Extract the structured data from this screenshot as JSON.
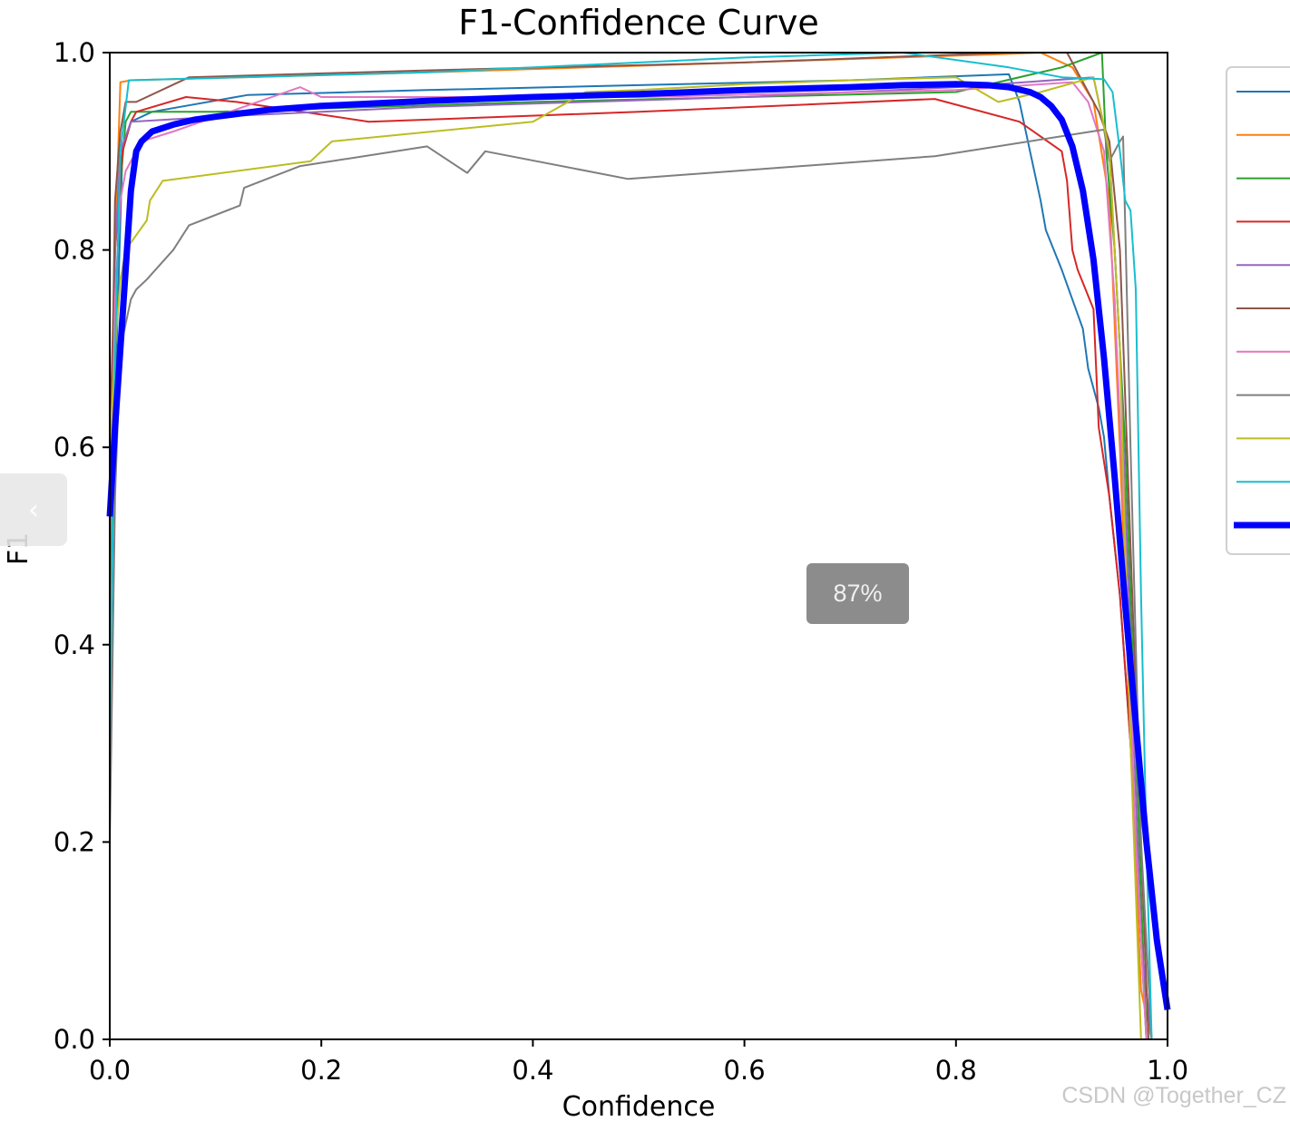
{
  "chart_data": {
    "type": "line",
    "title": "F1-Confidence Curve",
    "xlabel": "Confidence",
    "ylabel": "F1",
    "xlim": [
      0,
      1
    ],
    "ylim": [
      0,
      1
    ],
    "xticks": [
      "0.0",
      "0.2",
      "0.4",
      "0.6",
      "0.8",
      "1.0"
    ],
    "yticks": [
      "0.0",
      "0.2",
      "0.4",
      "0.6",
      "0.8",
      "1.0"
    ],
    "grid": false,
    "legend_position": "upper right (outside, cropped)",
    "series": [
      {
        "color": "#1f77b4",
        "width": 2,
        "x": [
          0.0,
          0.005,
          0.012,
          0.02,
          0.04,
          0.13,
          0.3,
          0.5,
          0.7,
          0.85,
          0.86,
          0.87,
          0.88,
          0.885,
          0.9,
          0.92,
          0.925,
          0.935,
          0.94,
          0.945,
          0.955,
          0.965,
          0.975,
          0.98
        ],
        "y": [
          0.35,
          0.65,
          0.9,
          0.93,
          0.94,
          0.957,
          0.962,
          0.967,
          0.972,
          0.978,
          0.95,
          0.9,
          0.85,
          0.82,
          0.78,
          0.72,
          0.68,
          0.64,
          0.61,
          0.55,
          0.45,
          0.3,
          0.1,
          0.0
        ]
      },
      {
        "color": "#ff7f0e",
        "width": 2,
        "x": [
          0.0,
          0.005,
          0.01,
          0.02,
          0.3,
          0.6,
          0.83,
          0.88,
          0.91,
          0.93,
          0.945,
          0.955,
          0.965,
          0.975,
          0.985
        ],
        "y": [
          0.4,
          0.8,
          0.97,
          0.972,
          0.98,
          0.99,
          0.998,
          1.0,
          0.985,
          0.95,
          0.85,
          0.6,
          0.3,
          0.05,
          0.0
        ]
      },
      {
        "color": "#2ca02c",
        "width": 2,
        "x": [
          0.0,
          0.005,
          0.015,
          0.02,
          0.1,
          0.4,
          0.8,
          0.9,
          0.938,
          0.942,
          0.95,
          0.96,
          0.97,
          0.98
        ],
        "y": [
          0.45,
          0.8,
          0.93,
          0.94,
          0.94,
          0.95,
          0.96,
          0.985,
          1.0,
          0.9,
          0.8,
          0.6,
          0.3,
          0.0
        ]
      },
      {
        "color": "#d62728",
        "width": 2,
        "x": [
          0.0,
          0.005,
          0.012,
          0.02,
          0.025,
          0.072,
          0.12,
          0.245,
          0.5,
          0.78,
          0.86,
          0.9,
          0.905,
          0.91,
          0.915,
          0.93,
          0.935,
          0.945,
          0.955,
          0.965,
          0.975,
          0.985
        ],
        "y": [
          0.6,
          0.8,
          0.9,
          0.93,
          0.94,
          0.955,
          0.95,
          0.93,
          0.94,
          0.953,
          0.93,
          0.9,
          0.87,
          0.8,
          0.78,
          0.74,
          0.62,
          0.55,
          0.45,
          0.3,
          0.1,
          0.0
        ]
      },
      {
        "color": "#9467bd",
        "width": 2,
        "x": [
          0.0,
          0.005,
          0.01,
          0.02,
          0.1,
          0.3,
          0.6,
          0.8,
          0.93,
          0.945,
          0.955,
          0.965,
          0.975,
          0.985
        ],
        "y": [
          0.5,
          0.8,
          0.9,
          0.93,
          0.935,
          0.945,
          0.955,
          0.965,
          0.975,
          0.9,
          0.7,
          0.4,
          0.1,
          0.0
        ]
      },
      {
        "color": "#8c564b",
        "width": 2,
        "x": [
          0.0,
          0.005,
          0.01,
          0.015,
          0.025,
          0.075,
          0.3,
          0.6,
          0.85,
          0.905,
          0.92,
          0.935,
          0.945,
          0.955,
          0.965,
          0.975,
          0.982
        ],
        "y": [
          0.5,
          0.85,
          0.92,
          0.95,
          0.95,
          0.975,
          0.982,
          0.99,
          1.0,
          1.0,
          0.97,
          0.94,
          0.91,
          0.8,
          0.5,
          0.2,
          0.0
        ]
      },
      {
        "color": "#e377c2",
        "width": 2,
        "x": [
          0.0,
          0.005,
          0.01,
          0.015,
          0.03,
          0.06,
          0.18,
          0.2,
          0.5,
          0.8,
          0.91,
          0.925,
          0.94,
          0.95,
          0.96,
          0.97,
          0.98
        ],
        "y": [
          0.5,
          0.75,
          0.85,
          0.88,
          0.91,
          0.92,
          0.965,
          0.955,
          0.955,
          0.962,
          0.97,
          0.95,
          0.9,
          0.75,
          0.5,
          0.2,
          0.0
        ]
      },
      {
        "color": "#7f7f7f",
        "width": 2,
        "x": [
          0.0,
          0.005,
          0.01,
          0.02,
          0.025,
          0.035,
          0.06,
          0.075,
          0.123,
          0.127,
          0.18,
          0.3,
          0.338,
          0.355,
          0.49,
          0.78,
          0.94,
          0.945,
          0.955,
          0.958,
          0.965,
          0.975,
          0.985
        ],
        "y": [
          0.2,
          0.55,
          0.7,
          0.75,
          0.76,
          0.77,
          0.8,
          0.825,
          0.845,
          0.863,
          0.885,
          0.905,
          0.878,
          0.9,
          0.872,
          0.895,
          0.922,
          0.89,
          0.91,
          0.915,
          0.6,
          0.2,
          0.0
        ]
      },
      {
        "color": "#bcbd22",
        "width": 2,
        "x": [
          0.0,
          0.005,
          0.01,
          0.015,
          0.035,
          0.038,
          0.05,
          0.19,
          0.21,
          0.4,
          0.45,
          0.5,
          0.6,
          0.7,
          0.8,
          0.84,
          0.88,
          0.93,
          0.945,
          0.955,
          0.965,
          0.975
        ],
        "y": [
          0.6,
          0.7,
          0.77,
          0.8,
          0.83,
          0.85,
          0.87,
          0.89,
          0.91,
          0.93,
          0.96,
          0.962,
          0.968,
          0.972,
          0.975,
          0.95,
          0.96,
          0.975,
          0.9,
          0.7,
          0.3,
          0.0
        ]
      },
      {
        "color": "#17becf",
        "width": 2,
        "x": [
          0.0,
          0.005,
          0.01,
          0.018,
          0.3,
          0.6,
          0.75,
          0.85,
          0.9,
          0.94,
          0.948,
          0.955,
          0.96,
          0.965,
          0.97,
          0.975,
          0.98,
          0.985
        ],
        "y": [
          0.3,
          0.7,
          0.9,
          0.972,
          0.98,
          0.995,
          1.0,
          0.985,
          0.975,
          0.973,
          0.96,
          0.9,
          0.85,
          0.84,
          0.76,
          0.45,
          0.2,
          0.0
        ]
      },
      {
        "color": "#0000ff",
        "width": 7,
        "x": [
          0.0,
          0.005,
          0.01,
          0.015,
          0.02,
          0.025,
          0.03,
          0.04,
          0.06,
          0.08,
          0.1,
          0.15,
          0.2,
          0.3,
          0.4,
          0.5,
          0.6,
          0.7,
          0.75,
          0.8,
          0.83,
          0.85,
          0.87,
          0.88,
          0.89,
          0.9,
          0.91,
          0.92,
          0.93,
          0.94,
          0.95,
          0.96,
          0.97,
          0.98,
          0.99,
          1.0
        ],
        "y": [
          0.53,
          0.62,
          0.7,
          0.78,
          0.86,
          0.9,
          0.91,
          0.92,
          0.927,
          0.932,
          0.935,
          0.942,
          0.946,
          0.951,
          0.955,
          0.958,
          0.962,
          0.965,
          0.967,
          0.968,
          0.967,
          0.965,
          0.96,
          0.955,
          0.946,
          0.932,
          0.905,
          0.86,
          0.79,
          0.69,
          0.57,
          0.44,
          0.32,
          0.2,
          0.1,
          0.03
        ]
      }
    ]
  },
  "ui": {
    "back_icon": "‹",
    "zoom_level": "87%",
    "watermark": "CSDN @Together_CZ"
  }
}
